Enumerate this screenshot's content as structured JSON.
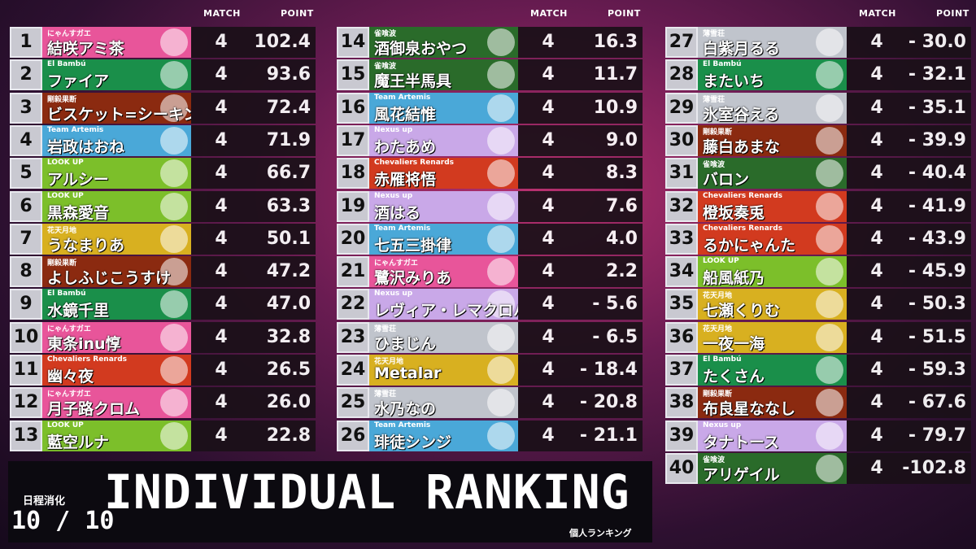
{
  "headers": {
    "match": "MATCH",
    "point": "POINT"
  },
  "title": "INDIVIDUAL RANKING",
  "progress_label": "日程消化",
  "progress": "10 / 10",
  "subtitle": "個人ランキング",
  "rows": [
    {
      "rank": 1,
      "team": "にゃんすガエ",
      "name": "結咲アミ茶",
      "match": 4,
      "point": "102.4",
      "color": "#e8559a"
    },
    {
      "rank": 2,
      "team": "El Bambú",
      "name": "ファイア",
      "match": 4,
      "point": "93.6",
      "color": "#1a8f4a"
    },
    {
      "rank": 3,
      "team": "剛毅果断",
      "name": "ビスケット=シーキンズ",
      "match": 4,
      "point": "72.4",
      "color": "#8b2a10"
    },
    {
      "rank": 4,
      "team": "Team Artemis",
      "name": "岩政はおね",
      "match": 4,
      "point": "71.9",
      "color": "#4aa8d8"
    },
    {
      "rank": 5,
      "team": "LOOK UP",
      "name": "アルシー",
      "match": 4,
      "point": "66.7",
      "color": "#7cbf2a"
    },
    {
      "rank": 6,
      "team": "LOOK UP",
      "name": "黒森愛音",
      "match": 4,
      "point": "63.3",
      "color": "#7cbf2a"
    },
    {
      "rank": 7,
      "team": "花天月地",
      "name": "うなまりあ",
      "match": 4,
      "point": "50.1",
      "color": "#d8b020"
    },
    {
      "rank": 8,
      "team": "剛毅果断",
      "name": "よしふじこうすけ",
      "match": 4,
      "point": "47.2",
      "color": "#8b2a10"
    },
    {
      "rank": 9,
      "team": "El Bambú",
      "name": "水鏡千里",
      "match": 4,
      "point": "47.0",
      "color": "#1a8f4a"
    },
    {
      "rank": 10,
      "team": "にゃんすガエ",
      "name": "東条inu惇",
      "match": 4,
      "point": "32.8",
      "color": "#e8559a"
    },
    {
      "rank": 11,
      "team": "Chevaliers Renards",
      "name": "幽々夜",
      "match": 4,
      "point": "26.5",
      "color": "#d23a1f"
    },
    {
      "rank": 12,
      "team": "にゃんすガエ",
      "name": "月子路クロム",
      "match": 4,
      "point": "26.0",
      "color": "#e8559a"
    },
    {
      "rank": 13,
      "team": "LOOK UP",
      "name": "藍空ルナ",
      "match": 4,
      "point": "22.8",
      "color": "#7cbf2a"
    },
    {
      "rank": 14,
      "team": "雀喰波",
      "name": "酒御泉おやつ",
      "match": 4,
      "point": "16.3",
      "color": "#2a6b2a"
    },
    {
      "rank": 15,
      "team": "雀喰波",
      "name": "魔王半馬具",
      "match": 4,
      "point": "11.7",
      "color": "#2a6b2a"
    },
    {
      "rank": 16,
      "team": "Team Artemis",
      "name": "風花結惟",
      "match": 4,
      "point": "10.9",
      "color": "#4aa8d8"
    },
    {
      "rank": 17,
      "team": "Nexus up",
      "name": "わたあめ",
      "match": 4,
      "point": "9.0",
      "color": "#c9a8e8"
    },
    {
      "rank": 18,
      "team": "Chevaliers Renards",
      "name": "赤雁将悟",
      "match": 4,
      "point": "8.3",
      "color": "#d23a1f"
    },
    {
      "rank": 19,
      "team": "Nexus up",
      "name": "酒はる",
      "match": 4,
      "point": "7.6",
      "color": "#c9a8e8"
    },
    {
      "rank": 20,
      "team": "Team Artemis",
      "name": "七五三掛律",
      "match": 4,
      "point": "4.0",
      "color": "#4aa8d8"
    },
    {
      "rank": 21,
      "team": "にゃんすガエ",
      "name": "鷺沢みりあ",
      "match": 4,
      "point": "2.2",
      "color": "#e8559a"
    },
    {
      "rank": 22,
      "team": "Nexus up",
      "name": "レヴィア・レマクロバーツ",
      "match": 4,
      "point": "- 5.6",
      "color": "#c9a8e8"
    },
    {
      "rank": 23,
      "team": "薄雪荘",
      "name": "ひまじん",
      "match": 4,
      "point": "- 6.5",
      "color": "#c0c4cc"
    },
    {
      "rank": 24,
      "team": "花天月地",
      "name": "Metalar",
      "match": 4,
      "point": "- 18.4",
      "color": "#d8b020"
    },
    {
      "rank": 25,
      "team": "薄雪荘",
      "name": "水乃なの",
      "match": 4,
      "point": "- 20.8",
      "color": "#c0c4cc"
    },
    {
      "rank": 26,
      "team": "Team Artemis",
      "name": "琲徒シンジ",
      "match": 4,
      "point": "- 21.1",
      "color": "#4aa8d8"
    },
    {
      "rank": 27,
      "team": "薄雪荘",
      "name": "白紫月るる",
      "match": 4,
      "point": "- 30.0",
      "color": "#c0c4cc"
    },
    {
      "rank": 28,
      "team": "El Bambú",
      "name": "またいち",
      "match": 4,
      "point": "- 32.1",
      "color": "#1a8f4a"
    },
    {
      "rank": 29,
      "team": "薄雪荘",
      "name": "氷室谷える",
      "match": 4,
      "point": "- 35.1",
      "color": "#c0c4cc"
    },
    {
      "rank": 30,
      "team": "剛毅果断",
      "name": "藤白あまな",
      "match": 4,
      "point": "- 39.9",
      "color": "#8b2a10"
    },
    {
      "rank": 31,
      "team": "雀喰波",
      "name": "バロン",
      "match": 4,
      "point": "- 40.4",
      "color": "#2a6b2a"
    },
    {
      "rank": 32,
      "team": "Chevaliers Renards",
      "name": "橙坂奏兎",
      "match": 4,
      "point": "- 41.9",
      "color": "#d23a1f"
    },
    {
      "rank": 33,
      "team": "Chevaliers Renards",
      "name": "るかにゃんた",
      "match": 4,
      "point": "- 43.9",
      "color": "#d23a1f"
    },
    {
      "rank": 34,
      "team": "LOOK UP",
      "name": "船風紙乃",
      "match": 4,
      "point": "- 45.9",
      "color": "#7cbf2a"
    },
    {
      "rank": 35,
      "team": "花天月地",
      "name": "七瀬くりむ",
      "match": 4,
      "point": "- 50.3",
      "color": "#d8b020"
    },
    {
      "rank": 36,
      "team": "花天月地",
      "name": "一夜一海",
      "match": 4,
      "point": "- 51.5",
      "color": "#d8b020"
    },
    {
      "rank": 37,
      "team": "El Bambú",
      "name": "たくさん",
      "match": 4,
      "point": "- 59.3",
      "color": "#1a8f4a"
    },
    {
      "rank": 38,
      "team": "剛毅果断",
      "name": "布良星ななし",
      "match": 4,
      "point": "- 67.6",
      "color": "#8b2a10"
    },
    {
      "rank": 39,
      "team": "Nexus up",
      "name": "タナトース",
      "match": 4,
      "point": "- 79.7",
      "color": "#c9a8e8"
    },
    {
      "rank": 40,
      "team": "雀喰波",
      "name": "アリゲイル",
      "match": 4,
      "point": "-102.8",
      "color": "#2a6b2a"
    }
  ]
}
